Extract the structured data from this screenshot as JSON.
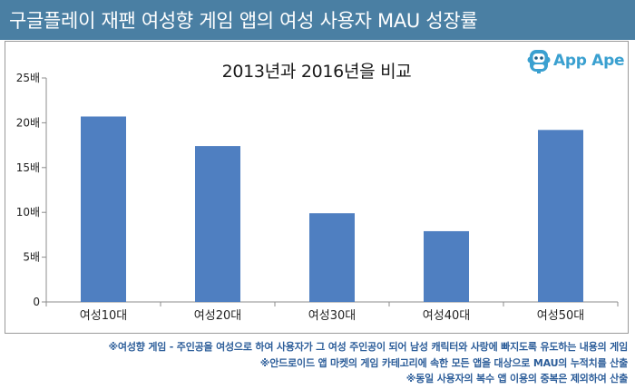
{
  "header": {
    "title": "구글플레이 재팬 여성향 게임 앱의 여성 사용자 MAU 성장률"
  },
  "logo": {
    "text": "App Ape",
    "icon": "app-ape-monkey-icon",
    "color": "#3aa0d0"
  },
  "colors": {
    "header_bg": "#4a7fa3",
    "bar": "#4f7fc1",
    "footnote": "#2d5e9a"
  },
  "chart_data": {
    "type": "bar",
    "title": "2013년과 2016년을 비교",
    "categories": [
      "여성10대",
      "여성20대",
      "여성30대",
      "여성40대",
      "여성50대"
    ],
    "values": [
      20.7,
      17.4,
      9.9,
      7.9,
      19.2
    ],
    "ylim": [
      0,
      25
    ],
    "yticks": [
      0,
      5,
      10,
      15,
      20,
      25
    ],
    "ytick_labels": [
      "0",
      "5배",
      "10배",
      "15배",
      "20배",
      "25배"
    ],
    "xlabel": "",
    "ylabel": "",
    "grid": false,
    "legend": "none"
  },
  "footnotes": [
    "※여성향 게임 - 주인공을 여성으로 하여 사용자가 그 여성 주인공이 되어 남성 캐릭터와 사랑에 빠지도록 유도하는 내용의 게임",
    "※안드로이드 앱 마켓의 게임 카테고리에 속한 모든 앱을 대상으로 MAU의 누적치를 산출",
    "※동일 사용자의 복수 앱 이용의 중복은 제외하여 산출"
  ]
}
